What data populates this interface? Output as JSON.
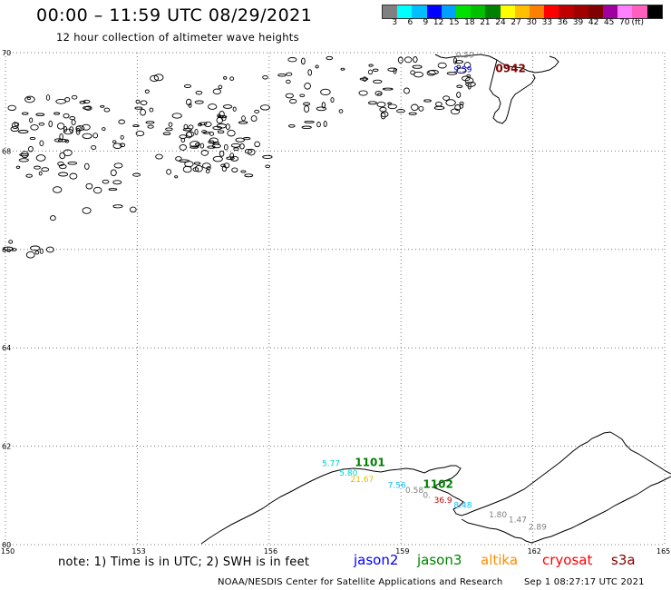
{
  "header": {
    "title": "00:00 – 11:59 UTC 08/29/2021",
    "subtitle": "12 hour collection of altimeter wave heights"
  },
  "legend": {
    "colors": [
      "#808080",
      "#00ffff",
      "#00bfff",
      "#0000ff",
      "#00a0ff",
      "#00e000",
      "#00c000",
      "#008000",
      "#ffff00",
      "#ffc000",
      "#ff8000",
      "#ff0000",
      "#c00000",
      "#a00000",
      "#800000",
      "#a000a0",
      "#ff80ff",
      "#ff60c0",
      "#000000"
    ],
    "labels": [
      "3",
      "6",
      "9",
      "12",
      "15",
      "18",
      "21",
      "24",
      "27",
      "30",
      "33",
      "36",
      "39",
      "42",
      "45",
      "70"
    ],
    "unit": "(ft)"
  },
  "axes": {
    "lat_labels": [
      "70",
      "68",
      "66",
      "64",
      "62",
      "60"
    ],
    "lon_labels": [
      "150",
      "153",
      "156",
      "159",
      "162",
      "165"
    ]
  },
  "annotations": [
    {
      "text": "0.59",
      "color": "#808080",
      "lon": 160.25,
      "lat": 69.9
    },
    {
      "text": "9.59",
      "color": "#0000ff",
      "lon": 160.2,
      "lat": 69.6
    },
    {
      "text": "0942",
      "color": "#800000",
      "lon": 161.15,
      "lat": 69.6
    },
    {
      "text": "5.77",
      "color": "#00cccc",
      "lon": 157.2,
      "lat": 61.6
    },
    {
      "text": "1101",
      "color": "#008000",
      "lon": 157.95,
      "lat": 61.6
    },
    {
      "text": "5.80",
      "color": "#00cccc",
      "lon": 157.6,
      "lat": 61.4
    },
    {
      "text": "21.67",
      "color": "#e0c000",
      "lon": 157.85,
      "lat": 61.27
    },
    {
      "text": "7.56",
      "color": "#00bfff",
      "lon": 158.7,
      "lat": 61.15
    },
    {
      "text": "1102",
      "color": "#008000",
      "lon": 159.5,
      "lat": 61.15
    },
    {
      "text": "0.58",
      "color": "#808080",
      "lon": 159.1,
      "lat": 61.05
    },
    {
      "text": "0.",
      "color": "#808080",
      "lon": 159.5,
      "lat": 60.95
    },
    {
      "text": "36.9",
      "color": "#c00000",
      "lon": 159.75,
      "lat": 60.85
    },
    {
      "text": "8.48",
      "color": "#00bfff",
      "lon": 160.2,
      "lat": 60.75
    },
    {
      "text": "1.80",
      "color": "#808080",
      "lon": 161.0,
      "lat": 60.55
    },
    {
      "text": "1.47",
      "color": "#808080",
      "lon": 161.45,
      "lat": 60.45
    },
    {
      "text": "2.89",
      "color": "#808080",
      "lon": 161.9,
      "lat": 60.3
    }
  ],
  "note": "note: 1) Time is in UTC; 2) SWH is in feet",
  "satellites": [
    {
      "name": "jason2",
      "color": "#0000ff"
    },
    {
      "name": "jason3",
      "color": "#008000"
    },
    {
      "name": "altika",
      "color": "#ff8c00"
    },
    {
      "name": "cryosat",
      "color": "#ff0000"
    },
    {
      "name": "s3a",
      "color": "#800000"
    }
  ],
  "footer": {
    "credit": "NOAA/NESDIS Center for Satellite Applications and Research",
    "timestamp": "Sep  1 08:27:17 UTC 2021"
  }
}
